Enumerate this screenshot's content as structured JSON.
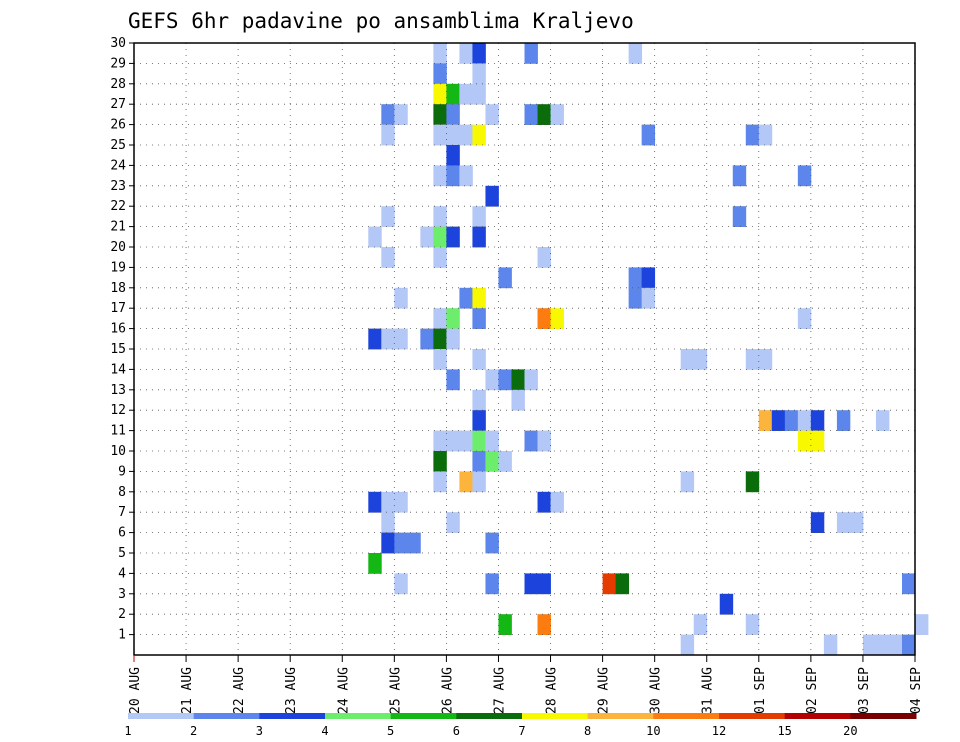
{
  "chart_data": {
    "type": "heatmap",
    "title": "GEFS 6hr padavine po ansamblima Kraljevo",
    "xlabel": "",
    "ylabel": "",
    "x_ticks": [
      "20 AUG",
      "21 AUG",
      "22 AUG",
      "23 AUG",
      "24 AUG",
      "25 AUG",
      "26 AUG",
      "27 AUG",
      "28 AUG",
      "29 AUG",
      "30 AUG",
      "31 AUG",
      "01 SEP",
      "02 SEP",
      "03 SEP",
      "04 SEP"
    ],
    "y_ticks": [
      1,
      2,
      3,
      4,
      5,
      6,
      7,
      8,
      9,
      10,
      11,
      12,
      13,
      14,
      15,
      16,
      17,
      18,
      19,
      20,
      21,
      22,
      23,
      24,
      25,
      26,
      27,
      28,
      29,
      30
    ],
    "x_range": [
      "20 AUG 00Z",
      "04 SEP 00Z"
    ],
    "time_step_hours": 6,
    "y_range": [
      0,
      30
    ],
    "grid": true,
    "colorbar": {
      "labels": [
        "1",
        "2",
        "3",
        "4",
        "5",
        "6",
        "7",
        "8",
        "10",
        "12",
        "15",
        "20"
      ],
      "colors": [
        "#b4c8f8",
        "#5c86ec",
        "#1c44dc",
        "#6cee6c",
        "#14b814",
        "#0a6c0a",
        "#f8f800",
        "#fcb43c",
        "#fc7c10",
        "#e43c00",
        "#b40000",
        "#780000"
      ]
    },
    "cells": [
      [
        "25 AUG 18Z",
        30,
        1
      ],
      [
        "26 AUG 06Z",
        30,
        1
      ],
      [
        "26 AUG 12Z",
        30,
        3
      ],
      [
        "27 AUG 12Z",
        30,
        2
      ],
      [
        "29 AUG 12Z",
        30,
        1
      ],
      [
        "25 AUG 18Z",
        29,
        2
      ],
      [
        "26 AUG 12Z",
        29,
        1
      ],
      [
        "25 AUG 18Z",
        28,
        7
      ],
      [
        "26 AUG 00Z",
        28,
        5
      ],
      [
        "26 AUG 06Z",
        28,
        1
      ],
      [
        "26 AUG 12Z",
        28,
        1
      ],
      [
        "24 AUG 18Z",
        27,
        2
      ],
      [
        "25 AUG 00Z",
        27,
        1
      ],
      [
        "25 AUG 18Z",
        27,
        6
      ],
      [
        "26 AUG 00Z",
        27,
        2
      ],
      [
        "26 AUG 18Z",
        27,
        1
      ],
      [
        "27 AUG 12Z",
        27,
        2
      ],
      [
        "27 AUG 18Z",
        27,
        6
      ],
      [
        "28 AUG 00Z",
        27,
        1
      ],
      [
        "24 AUG 18Z",
        26,
        1
      ],
      [
        "25 AUG 18Z",
        26,
        1
      ],
      [
        "26 AUG 00Z",
        26,
        1
      ],
      [
        "26 AUG 06Z",
        26,
        1
      ],
      [
        "26 AUG 12Z",
        26,
        7
      ],
      [
        "29 AUG 18Z",
        26,
        2
      ],
      [
        "31 AUG 18Z",
        26,
        2
      ],
      [
        "01 SEP 00Z",
        26,
        1
      ],
      [
        "26 AUG 00Z",
        25,
        3
      ],
      [
        "25 AUG 18Z",
        24,
        1
      ],
      [
        "26 AUG 00Z",
        24,
        2
      ],
      [
        "26 AUG 06Z",
        24,
        1
      ],
      [
        "31 AUG 12Z",
        24,
        2
      ],
      [
        "01 SEP 18Z",
        24,
        2
      ],
      [
        "26 AUG 18Z",
        23,
        3
      ],
      [
        "24 AUG 18Z",
        22,
        1
      ],
      [
        "25 AUG 18Z",
        22,
        1
      ],
      [
        "26 AUG 12Z",
        22,
        1
      ],
      [
        "31 AUG 12Z",
        22,
        2
      ],
      [
        "24 AUG 12Z",
        21,
        1
      ],
      [
        "25 AUG 12Z",
        21,
        1
      ],
      [
        "25 AUG 18Z",
        21,
        4
      ],
      [
        "26 AUG 00Z",
        21,
        3
      ],
      [
        "26 AUG 12Z",
        21,
        3
      ],
      [
        "24 AUG 18Z",
        20,
        1
      ],
      [
        "25 AUG 18Z",
        20,
        1
      ],
      [
        "27 AUG 18Z",
        20,
        1
      ],
      [
        "27 AUG 00Z",
        19,
        2
      ],
      [
        "29 AUG 12Z",
        19,
        2
      ],
      [
        "29 AUG 18Z",
        19,
        3
      ],
      [
        "25 AUG 00Z",
        18,
        1
      ],
      [
        "26 AUG 06Z",
        18,
        2
      ],
      [
        "26 AUG 12Z",
        18,
        7
      ],
      [
        "29 AUG 12Z",
        18,
        2
      ],
      [
        "29 AUG 18Z",
        18,
        1
      ],
      [
        "25 AUG 18Z",
        17,
        1
      ],
      [
        "26 AUG 00Z",
        17,
        4
      ],
      [
        "26 AUG 12Z",
        17,
        2
      ],
      [
        "27 AUG 18Z",
        17,
        9
      ],
      [
        "28 AUG 00Z",
        17,
        7
      ],
      [
        "01 SEP 18Z",
        17,
        1
      ],
      [
        "24 AUG 12Z",
        16,
        3
      ],
      [
        "24 AUG 18Z",
        16,
        1
      ],
      [
        "25 AUG 00Z",
        16,
        1
      ],
      [
        "25 AUG 12Z",
        16,
        2
      ],
      [
        "25 AUG 18Z",
        16,
        6
      ],
      [
        "26 AUG 00Z",
        16,
        1
      ],
      [
        "25 AUG 18Z",
        15,
        1
      ],
      [
        "26 AUG 12Z",
        15,
        1
      ],
      [
        "30 AUG 12Z",
        15,
        1
      ],
      [
        "30 AUG 18Z",
        15,
        1
      ],
      [
        "31 AUG 18Z",
        15,
        1
      ],
      [
        "01 SEP 00Z",
        15,
        1
      ],
      [
        "26 AUG 00Z",
        14,
        2
      ],
      [
        "26 AUG 18Z",
        14,
        1
      ],
      [
        "27 AUG 00Z",
        14,
        2
      ],
      [
        "27 AUG 06Z",
        14,
        6
      ],
      [
        "27 AUG 12Z",
        14,
        1
      ],
      [
        "26 AUG 12Z",
        13,
        1
      ],
      [
        "27 AUG 06Z",
        13,
        1
      ],
      [
        "26 AUG 12Z",
        12,
        3
      ],
      [
        "01 SEP 00Z",
        12,
        8
      ],
      [
        "01 SEP 06Z",
        12,
        3
      ],
      [
        "01 SEP 12Z",
        12,
        2
      ],
      [
        "01 SEP 18Z",
        12,
        1
      ],
      [
        "02 SEP 00Z",
        12,
        3
      ],
      [
        "02 SEP 12Z",
        12,
        2
      ],
      [
        "03 SEP 06Z",
        12,
        1
      ],
      [
        "25 AUG 18Z",
        11,
        1
      ],
      [
        "26 AUG 00Z",
        11,
        1
      ],
      [
        "26 AUG 06Z",
        11,
        1
      ],
      [
        "26 AUG 12Z",
        11,
        4
      ],
      [
        "26 AUG 18Z",
        11,
        1
      ],
      [
        "27 AUG 12Z",
        11,
        2
      ],
      [
        "27 AUG 18Z",
        11,
        1
      ],
      [
        "01 SEP 18Z",
        11,
        7
      ],
      [
        "02 SEP 00Z",
        11,
        7
      ],
      [
        "25 AUG 18Z",
        10,
        6
      ],
      [
        "26 AUG 12Z",
        10,
        2
      ],
      [
        "26 AUG 18Z",
        10,
        4
      ],
      [
        "27 AUG 00Z",
        10,
        1
      ],
      [
        "25 AUG 18Z",
        9,
        1
      ],
      [
        "26 AUG 06Z",
        9,
        8
      ],
      [
        "26 AUG 12Z",
        9,
        1
      ],
      [
        "30 AUG 12Z",
        9,
        1
      ],
      [
        "31 AUG 18Z",
        9,
        6
      ],
      [
        "24 AUG 12Z",
        8,
        3
      ],
      [
        "24 AUG 18Z",
        8,
        1
      ],
      [
        "25 AUG 00Z",
        8,
        1
      ],
      [
        "27 AUG 18Z",
        8,
        3
      ],
      [
        "28 AUG 00Z",
        8,
        1
      ],
      [
        "24 AUG 18Z",
        7,
        1
      ],
      [
        "26 AUG 00Z",
        7,
        1
      ],
      [
        "02 SEP 00Z",
        7,
        3
      ],
      [
        "02 SEP 12Z",
        7,
        1
      ],
      [
        "02 SEP 18Z",
        7,
        1
      ],
      [
        "24 AUG 18Z",
        6,
        3
      ],
      [
        "25 AUG 00Z",
        6,
        2
      ],
      [
        "25 AUG 06Z",
        6,
        2
      ],
      [
        "26 AUG 18Z",
        6,
        2
      ],
      [
        "24 AUG 12Z",
        5,
        5
      ],
      [
        "25 AUG 00Z",
        4,
        1
      ],
      [
        "26 AUG 18Z",
        4,
        2
      ],
      [
        "27 AUG 12Z",
        4,
        3
      ],
      [
        "27 AUG 18Z",
        4,
        3
      ],
      [
        "29 AUG 00Z",
        4,
        10
      ],
      [
        "29 AUG 06Z",
        4,
        6
      ],
      [
        "03 SEP 18Z",
        4,
        2
      ],
      [
        "31 AUG 06Z",
        3,
        3
      ],
      [
        "27 AUG 00Z",
        2,
        5
      ],
      [
        "27 AUG 18Z",
        2,
        9
      ],
      [
        "30 AUG 18Z",
        2,
        1
      ],
      [
        "31 AUG 18Z",
        2,
        1
      ],
      [
        "04 SEP 00Z",
        2,
        1
      ],
      [
        "30 AUG 12Z",
        1,
        1
      ],
      [
        "02 SEP 06Z",
        1,
        1
      ],
      [
        "03 SEP 00Z",
        1,
        1
      ],
      [
        "03 SEP 06Z",
        1,
        1
      ],
      [
        "03 SEP 12Z",
        1,
        1
      ],
      [
        "03 SEP 18Z",
        1,
        2
      ]
    ]
  }
}
